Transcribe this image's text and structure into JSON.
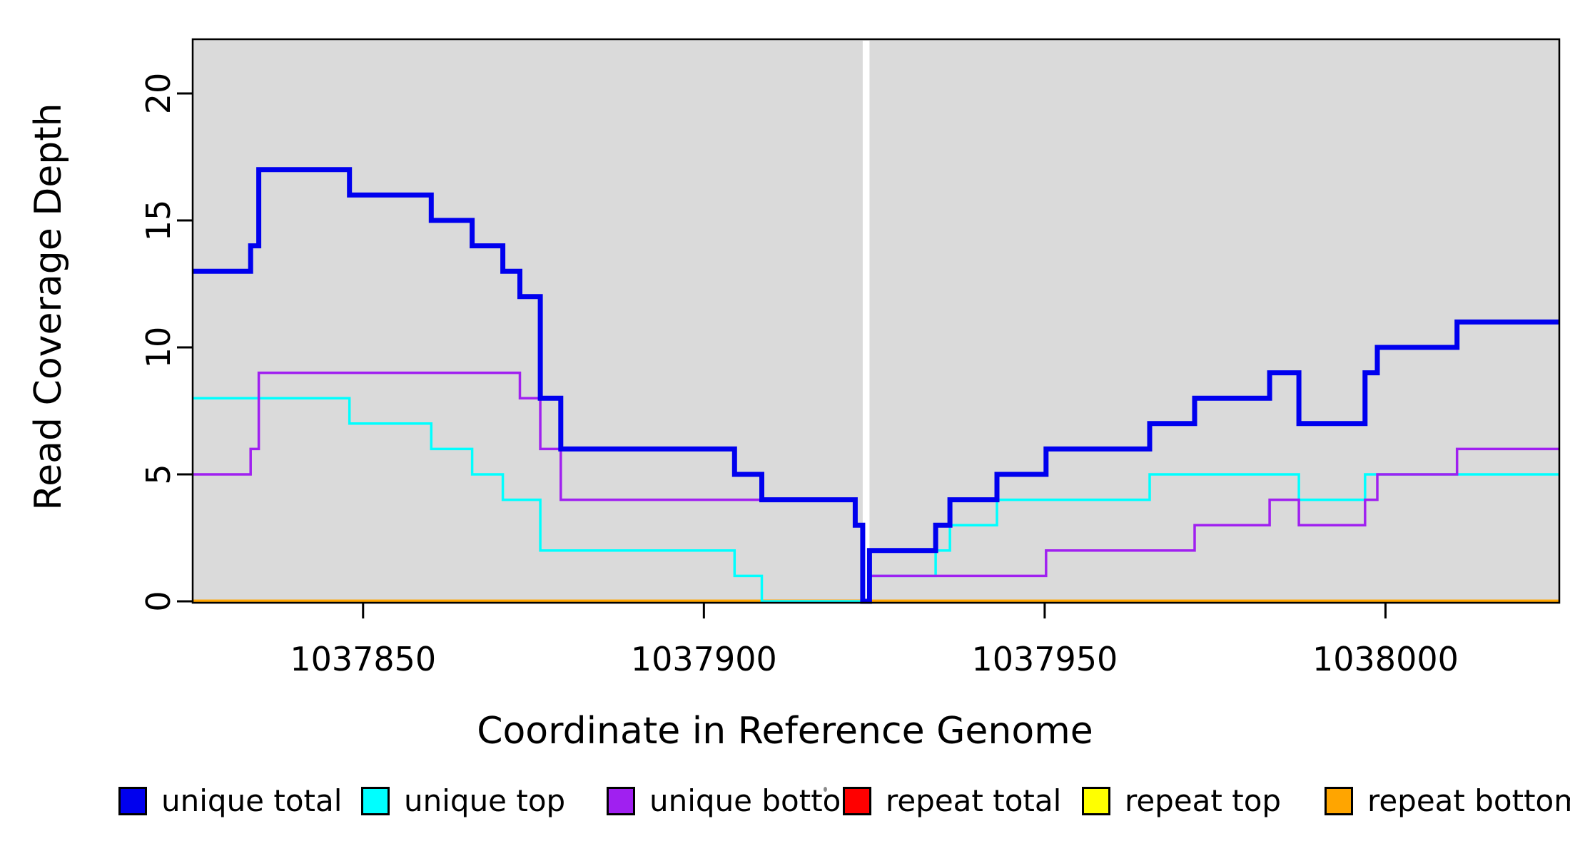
{
  "chart_data": {
    "type": "line",
    "subtype": "step-coverage",
    "title": "",
    "xlabel": "Coordinate in Reference Genome",
    "ylabel": "Read Coverage Depth",
    "x_ticks": [
      1037850,
      1037900,
      1037950,
      1038000
    ],
    "x_tick_labels": [
      "1037850",
      "1037900",
      "1037950",
      "1038000"
    ],
    "y_ticks": [
      0,
      5,
      10,
      15,
      20
    ],
    "y_tick_labels": [
      "0",
      "5",
      "10",
      "15",
      "20"
    ],
    "xlim": [
      1037825,
      1038025.5
    ],
    "ylim": [
      0,
      22.1
    ],
    "grid": false,
    "panel_background": "#DADADA",
    "outer_background": "#FFFFFF",
    "masked_gap": {
      "x_start": 1037923.3,
      "x_end": 1037924.3,
      "color": "#FFFFFF"
    },
    "legend_position": "bottom",
    "legend": [
      {
        "label": "unique total",
        "color": "#0000EE"
      },
      {
        "label": "unique top",
        "color": "#00FFFF"
      },
      {
        "label": "unique bottom",
        "color": "#A020F0"
      },
      {
        "label": "repeat total",
        "color": "#FF0000"
      },
      {
        "label": "repeat top",
        "color": "#FFFF00"
      },
      {
        "label": "repeat bottom",
        "color": "#FFA500"
      }
    ],
    "series": [
      {
        "name": "repeat total",
        "color": "#FF0000",
        "line_width": 3.5,
        "segments": [
          [
            1037825,
            1038025.5,
            0
          ]
        ]
      },
      {
        "name": "repeat top",
        "color": "#FFFF00",
        "line_width": 3.5,
        "segments": [
          [
            1037825,
            1038025.5,
            0
          ]
        ]
      },
      {
        "name": "repeat bottom",
        "color": "#FFA500",
        "line_width": 5,
        "segments": [
          [
            1037825,
            1038025.5,
            0
          ]
        ]
      },
      {
        "name": "unique top",
        "color": "#00FFFF",
        "line_width": 3.5,
        "segments": [
          [
            1037825,
            1037848,
            8
          ],
          [
            1037848,
            1037860,
            7
          ],
          [
            1037860,
            1037866,
            6
          ],
          [
            1037866,
            1037870.5,
            5
          ],
          [
            1037870.5,
            1037876,
            4
          ],
          [
            1037876,
            1037904.5,
            2
          ],
          [
            1037904.5,
            1037908.5,
            1
          ],
          [
            1037908.5,
            1037924.3,
            0
          ],
          [
            1037924.3,
            1037934,
            1
          ],
          [
            1037934,
            1037936.1,
            2
          ],
          [
            1037936.1,
            1037943,
            3
          ],
          [
            1037943,
            1037965.4,
            4
          ],
          [
            1037965.4,
            1037987.3,
            5
          ],
          [
            1037987.3,
            1037997,
            4
          ],
          [
            1037997,
            1038025.5,
            5
          ]
        ]
      },
      {
        "name": "unique bottom",
        "color": "#A020F0",
        "line_width": 3.5,
        "segments": [
          [
            1037825,
            1037833.5,
            5
          ],
          [
            1037833.5,
            1037834.7,
            6
          ],
          [
            1037834.7,
            1037873,
            9
          ],
          [
            1037873,
            1037876,
            8
          ],
          [
            1037876,
            1037879,
            6
          ],
          [
            1037879,
            1037922.2,
            4
          ],
          [
            1037922.2,
            1037923.3,
            3
          ],
          [
            1037923.3,
            1037924.3,
            0
          ],
          [
            1037924.3,
            1037950.2,
            1
          ],
          [
            1037950.2,
            1037972,
            2
          ],
          [
            1037972,
            1037983,
            3
          ],
          [
            1037983,
            1037987.3,
            4
          ],
          [
            1037987.3,
            1037997,
            3
          ],
          [
            1037997,
            1037998.8,
            4
          ],
          [
            1037998.8,
            1038010.5,
            5
          ],
          [
            1038010.5,
            1038025.5,
            6
          ]
        ]
      },
      {
        "name": "unique total",
        "color": "#0000EE",
        "line_width": 7,
        "segments": [
          [
            1037825,
            1037833.5,
            13
          ],
          [
            1037833.5,
            1037834.7,
            14
          ],
          [
            1037834.7,
            1037848,
            17
          ],
          [
            1037848,
            1037860,
            16
          ],
          [
            1037860,
            1037866,
            15
          ],
          [
            1037866,
            1037870.5,
            14
          ],
          [
            1037870.5,
            1037873,
            13
          ],
          [
            1037873,
            1037876,
            12
          ],
          [
            1037876,
            1037879,
            8
          ],
          [
            1037879,
            1037904.5,
            6
          ],
          [
            1037904.5,
            1037908.5,
            5
          ],
          [
            1037908.5,
            1037922.2,
            4
          ],
          [
            1037922.2,
            1037923.3,
            3
          ],
          [
            1037923.3,
            1037924.3,
            0
          ],
          [
            1037924.3,
            1037934,
            2
          ],
          [
            1037934,
            1037936.1,
            3
          ],
          [
            1037936.1,
            1037943,
            4
          ],
          [
            1037943,
            1037950.2,
            5
          ],
          [
            1037950.2,
            1037965.4,
            6
          ],
          [
            1037965.4,
            1037972,
            7
          ],
          [
            1037972,
            1037983,
            8
          ],
          [
            1037983,
            1037987.3,
            9
          ],
          [
            1037987.3,
            1037997,
            7
          ],
          [
            1037997,
            1037998.8,
            9
          ],
          [
            1037998.8,
            1038010.5,
            10
          ],
          [
            1038010.5,
            1038025.5,
            11
          ]
        ]
      }
    ]
  }
}
